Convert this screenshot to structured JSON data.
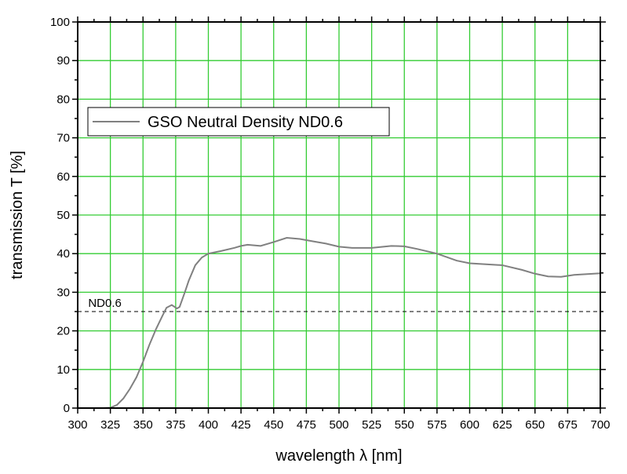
{
  "chart_data": {
    "type": "line",
    "xlabel": "wavelength λ [nm]",
    "ylabel": "transmission T [%]",
    "xlim": [
      300,
      700
    ],
    "ylim": [
      0,
      100
    ],
    "xticks": [
      300,
      325,
      350,
      375,
      400,
      425,
      450,
      475,
      500,
      525,
      550,
      575,
      600,
      625,
      650,
      675,
      700
    ],
    "yticks": [
      0,
      10,
      20,
      30,
      40,
      50,
      60,
      70,
      80,
      90,
      100
    ],
    "grid": true,
    "grid_color": "#33cc33",
    "legend_position": "top-left",
    "series": [
      {
        "name": "GSO Neutral Density ND0.6",
        "color": "#808080",
        "x": [
          300,
          320,
          325,
          330,
          335,
          340,
          345,
          350,
          355,
          360,
          365,
          368,
          372,
          376,
          378,
          382,
          385,
          390,
          395,
          400,
          410,
          420,
          425,
          430,
          440,
          450,
          460,
          470,
          480,
          490,
          500,
          510,
          525,
          540,
          550,
          560,
          575,
          590,
          600,
          625,
          640,
          650,
          660,
          670,
          680,
          700
        ],
        "y": [
          0,
          0,
          0.1,
          0.8,
          2.5,
          5,
          8,
          12,
          16.5,
          20.5,
          24,
          26,
          26.7,
          25.8,
          26.2,
          30,
          33,
          37,
          39,
          40,
          40.7,
          41.5,
          42,
          42.3,
          42,
          43,
          44.1,
          43.8,
          43.2,
          42.6,
          41.8,
          41.5,
          41.5,
          42,
          41.9,
          41.2,
          40,
          38.2,
          37.5,
          37,
          35.8,
          34.8,
          34.1,
          34,
          34.5,
          34.9
        ]
      }
    ],
    "reference_line": {
      "label": "ND0.6",
      "y": 25
    }
  }
}
